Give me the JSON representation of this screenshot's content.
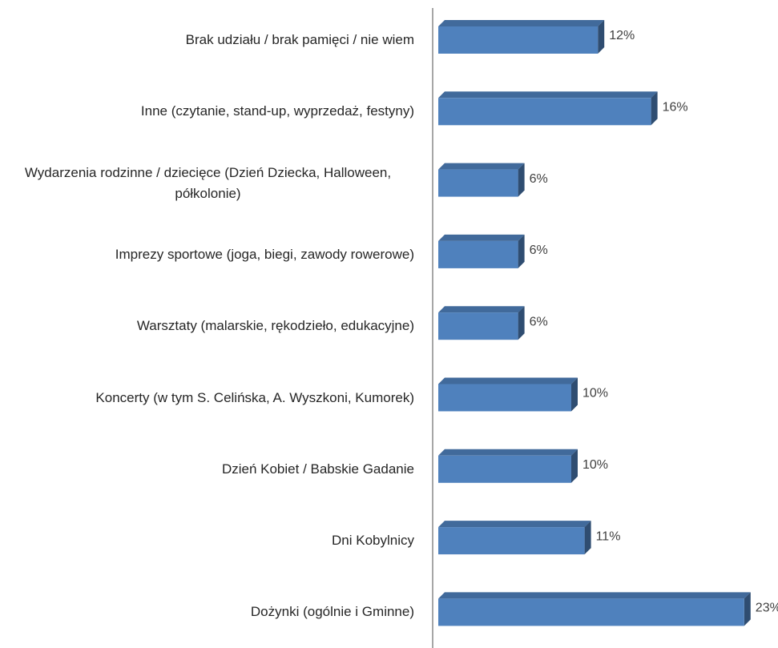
{
  "chart_data": {
    "type": "bar",
    "orientation": "horizontal",
    "categories": [
      "Brak udziału / brak pamięci / nie wiem",
      "Inne (czytanie, stand-up, wyprzedaż, festyny)",
      "Wydarzenia rodzinne / dziecięce (Dzień Dziecka, Halloween, półkolonie)",
      "Imprezy sportowe (joga, biegi, zawody rowerowe)",
      "Warsztaty (malarskie, rękodzieło, edukacyjne)",
      "Koncerty (w tym S. Celińska, A. Wyszkoni, Kumorek)",
      "Dzień Kobiet / Babskie Gadanie",
      "Dni Kobylnicy",
      "Dożynki (ogólnie i Gminne)"
    ],
    "values": [
      12,
      16,
      6,
      6,
      6,
      10,
      10,
      11,
      23
    ],
    "value_labels": [
      "12%",
      "16%",
      "6%",
      "6%",
      "6%",
      "10%",
      "10%",
      "11%",
      "23%"
    ],
    "color": "#4f81bd"
  }
}
